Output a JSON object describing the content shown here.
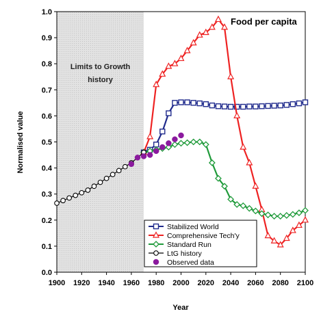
{
  "chart_data": {
    "type": "line",
    "title": "Food per capita",
    "xlabel": "Year",
    "ylabel": "Normalised value",
    "xlim": [
      1900,
      2100
    ],
    "ylim": [
      0,
      1.0
    ],
    "x_ticks": [
      "1900",
      "1920",
      "1940",
      "1960",
      "1980",
      "2000",
      "2020",
      "2040",
      "2060",
      "2080",
      "2100"
    ],
    "y_ticks": [
      "0.0",
      "0.1",
      "0.2",
      "0.3",
      "0.4",
      "0.5",
      "0.6",
      "0.7",
      "0.8",
      "0.9",
      "1.0"
    ],
    "grid": false,
    "legend_position": "bottom-right",
    "shaded_region": {
      "x_start": 1900,
      "x_end": 1970,
      "label_lines": [
        "Limits to Growth",
        "history"
      ],
      "color": "#dcdcdc"
    },
    "series": [
      {
        "name": "Stabilized World",
        "color": "#1f2a8c",
        "marker": "square",
        "x": [
          1970,
          1975,
          1980,
          1985,
          1990,
          1995,
          2000,
          2005,
          2010,
          2015,
          2020,
          2025,
          2030,
          2035,
          2040,
          2045,
          2050,
          2055,
          2060,
          2065,
          2070,
          2075,
          2080,
          2085,
          2090,
          2095,
          2100
        ],
        "y": [
          0.46,
          0.47,
          0.49,
          0.54,
          0.61,
          0.65,
          0.652,
          0.652,
          0.65,
          0.648,
          0.645,
          0.64,
          0.637,
          0.636,
          0.635,
          0.635,
          0.635,
          0.636,
          0.636,
          0.637,
          0.638,
          0.639,
          0.64,
          0.642,
          0.645,
          0.648,
          0.652
        ]
      },
      {
        "name": "Comprehensive Tech'y",
        "color": "#ee2222",
        "marker": "triangle",
        "x": [
          1970,
          1975,
          1980,
          1985,
          1990,
          1995,
          2000,
          2005,
          2010,
          2015,
          2020,
          2025,
          2030,
          2035,
          2040,
          2045,
          2050,
          2055,
          2060,
          2065,
          2070,
          2075,
          2080,
          2085,
          2090,
          2095,
          2100
        ],
        "y": [
          0.46,
          0.52,
          0.72,
          0.76,
          0.79,
          0.8,
          0.82,
          0.85,
          0.88,
          0.91,
          0.92,
          0.94,
          0.97,
          0.94,
          0.75,
          0.6,
          0.48,
          0.42,
          0.33,
          0.24,
          0.14,
          0.12,
          0.105,
          0.13,
          0.16,
          0.18,
          0.2
        ]
      },
      {
        "name": "Standard Run",
        "color": "#1f9a3a",
        "marker": "diamond",
        "x": [
          1970,
          1975,
          1980,
          1985,
          1990,
          1995,
          2000,
          2005,
          2010,
          2015,
          2020,
          2025,
          2030,
          2035,
          2040,
          2045,
          2050,
          2055,
          2060,
          2065,
          2070,
          2075,
          2080,
          2085,
          2090,
          2095,
          2100
        ],
        "y": [
          0.46,
          0.465,
          0.47,
          0.475,
          0.48,
          0.49,
          0.495,
          0.497,
          0.5,
          0.5,
          0.49,
          0.42,
          0.36,
          0.33,
          0.28,
          0.26,
          0.255,
          0.245,
          0.235,
          0.225,
          0.22,
          0.215,
          0.215,
          0.218,
          0.222,
          0.228,
          0.237
        ]
      },
      {
        "name": "LtG history",
        "color": "#000000",
        "marker": "circle-open",
        "x": [
          1900,
          1905,
          1910,
          1915,
          1920,
          1925,
          1930,
          1935,
          1940,
          1945,
          1950,
          1955,
          1960,
          1965,
          1970
        ],
        "y": [
          0.265,
          0.275,
          0.285,
          0.295,
          0.305,
          0.315,
          0.33,
          0.345,
          0.36,
          0.375,
          0.39,
          0.405,
          0.42,
          0.44,
          0.46
        ]
      },
      {
        "name": "Observed data",
        "color": "#8b1a9e",
        "marker": "circle-filled",
        "x": [
          1960,
          1965,
          1970,
          1975,
          1980,
          1985,
          1990,
          1995,
          2000
        ],
        "y": [
          0.415,
          0.44,
          0.445,
          0.45,
          0.465,
          0.48,
          0.495,
          0.51,
          0.525
        ]
      }
    ]
  }
}
